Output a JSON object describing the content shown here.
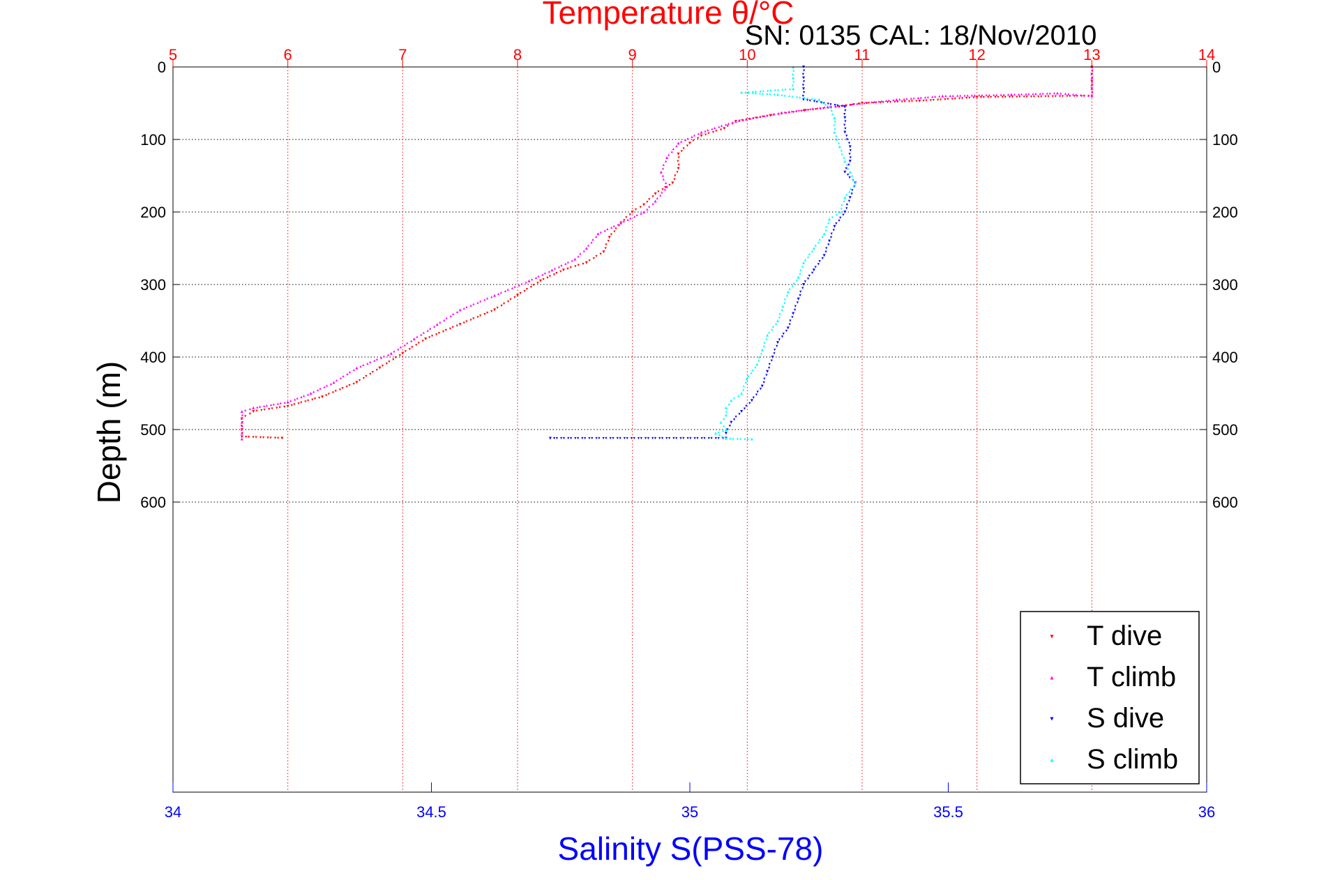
{
  "chart_data": {
    "type": "scatter",
    "title": "Temperature θ/°C",
    "subtitle": "SN: 0135  CAL: 18/Nov/2010",
    "xlabel_top": "Temperature θ/°C",
    "xlabel_bottom": "Salinity S(PSS-78)",
    "ylabel": "Depth (m)",
    "temperature_axis": {
      "range": [
        5,
        14
      ],
      "ticks": [
        "5",
        "6",
        "7",
        "8",
        "9",
        "10",
        "11",
        "12",
        "13",
        "14"
      ]
    },
    "salinity_axis": {
      "range": [
        34,
        36
      ],
      "ticks": [
        "34",
        "34.5",
        "35",
        "35.5",
        "36"
      ]
    },
    "depth_axis": {
      "range": [
        0,
        1000
      ],
      "reversed": true,
      "ticks": [
        "0",
        "100",
        "200",
        "300",
        "400",
        "500",
        "600"
      ]
    },
    "grid": true,
    "legend_placement": "bottom-right",
    "series": [
      {
        "name": "T dive",
        "axis": "temperature",
        "color": "#ff0000",
        "marker": "triangle-down",
        "points": [
          [
            13.0,
            0
          ],
          [
            13.0,
            10
          ],
          [
            13.0,
            20
          ],
          [
            13.0,
            30
          ],
          [
            13.0,
            40
          ],
          [
            12.0,
            42
          ],
          [
            11.5,
            47
          ],
          [
            11.0,
            50
          ],
          [
            10.8,
            55
          ],
          [
            10.5,
            60
          ],
          [
            10.2,
            67
          ],
          [
            9.9,
            75
          ],
          [
            9.8,
            85
          ],
          [
            9.6,
            95
          ],
          [
            9.5,
            105
          ],
          [
            9.4,
            120
          ],
          [
            9.4,
            140
          ],
          [
            9.35,
            160
          ],
          [
            9.2,
            175
          ],
          [
            9.1,
            190
          ],
          [
            9.0,
            200
          ],
          [
            8.9,
            215
          ],
          [
            8.8,
            235
          ],
          [
            8.75,
            255
          ],
          [
            8.6,
            270
          ],
          [
            8.4,
            280
          ],
          [
            8.2,
            295
          ],
          [
            8.0,
            315
          ],
          [
            7.8,
            335
          ],
          [
            7.5,
            355
          ],
          [
            7.2,
            375
          ],
          [
            7.0,
            395
          ],
          [
            6.8,
            415
          ],
          [
            6.6,
            435
          ],
          [
            6.3,
            455
          ],
          [
            6.0,
            468
          ],
          [
            5.7,
            475
          ],
          [
            5.6,
            485
          ],
          [
            5.6,
            500
          ],
          [
            5.6,
            510
          ],
          [
            5.95,
            512
          ]
        ]
      },
      {
        "name": "T climb",
        "axis": "temperature",
        "color": "#ff00ff",
        "marker": "triangle-up",
        "points": [
          [
            13.0,
            0
          ],
          [
            13.0,
            15
          ],
          [
            13.0,
            30
          ],
          [
            13.0,
            40
          ],
          [
            12.7,
            36
          ],
          [
            12.3,
            38
          ],
          [
            11.7,
            40
          ],
          [
            11.3,
            45
          ],
          [
            10.7,
            55
          ],
          [
            10.3,
            63
          ],
          [
            9.9,
            75
          ],
          [
            9.6,
            90
          ],
          [
            9.4,
            105
          ],
          [
            9.3,
            125
          ],
          [
            9.25,
            145
          ],
          [
            9.3,
            165
          ],
          [
            9.2,
            185
          ],
          [
            9.1,
            200
          ],
          [
            8.9,
            215
          ],
          [
            8.7,
            230
          ],
          [
            8.6,
            250
          ],
          [
            8.5,
            265
          ],
          [
            8.3,
            280
          ],
          [
            8.1,
            295
          ],
          [
            7.8,
            315
          ],
          [
            7.5,
            335
          ],
          [
            7.3,
            355
          ],
          [
            7.1,
            375
          ],
          [
            6.9,
            395
          ],
          [
            6.6,
            415
          ],
          [
            6.4,
            435
          ],
          [
            6.2,
            450
          ],
          [
            6.0,
            462
          ],
          [
            5.7,
            470
          ],
          [
            5.6,
            475
          ],
          [
            5.6,
            490
          ],
          [
            5.6,
            505
          ],
          [
            5.6,
            513
          ]
        ]
      },
      {
        "name": "S dive",
        "axis": "salinity",
        "color": "#0000ff",
        "marker": "triangle-down",
        "points": [
          [
            35.22,
            0
          ],
          [
            35.22,
            15
          ],
          [
            35.22,
            30
          ],
          [
            35.22,
            45
          ],
          [
            35.3,
            55
          ],
          [
            35.3,
            70
          ],
          [
            35.3,
            90
          ],
          [
            35.31,
            110
          ],
          [
            35.31,
            130
          ],
          [
            35.3,
            145
          ],
          [
            35.32,
            160
          ],
          [
            35.31,
            180
          ],
          [
            35.3,
            200
          ],
          [
            35.28,
            220
          ],
          [
            35.27,
            240
          ],
          [
            35.26,
            260
          ],
          [
            35.24,
            280
          ],
          [
            35.22,
            300
          ],
          [
            35.21,
            320
          ],
          [
            35.2,
            340
          ],
          [
            35.19,
            360
          ],
          [
            35.17,
            380
          ],
          [
            35.16,
            400
          ],
          [
            35.15,
            420
          ],
          [
            35.14,
            440
          ],
          [
            35.12,
            460
          ],
          [
            35.1,
            475
          ],
          [
            35.08,
            490
          ],
          [
            35.07,
            505
          ],
          [
            35.07,
            512
          ],
          [
            34.73,
            512
          ]
        ]
      },
      {
        "name": "S climb",
        "axis": "salinity",
        "color": "#00ffff",
        "marker": "triangle-up",
        "points": [
          [
            35.2,
            0
          ],
          [
            35.2,
            15
          ],
          [
            35.2,
            30
          ],
          [
            35.1,
            35
          ],
          [
            35.17,
            38
          ],
          [
            35.25,
            45
          ],
          [
            35.27,
            55
          ],
          [
            35.28,
            70
          ],
          [
            35.28,
            90
          ],
          [
            35.29,
            110
          ],
          [
            35.3,
            130
          ],
          [
            35.31,
            145
          ],
          [
            35.32,
            160
          ],
          [
            35.3,
            180
          ],
          [
            35.29,
            200
          ],
          [
            35.27,
            210
          ],
          [
            35.26,
            230
          ],
          [
            35.24,
            250
          ],
          [
            35.22,
            270
          ],
          [
            35.21,
            290
          ],
          [
            35.19,
            310
          ],
          [
            35.18,
            330
          ],
          [
            35.17,
            350
          ],
          [
            35.15,
            370
          ],
          [
            35.14,
            390
          ],
          [
            35.13,
            410
          ],
          [
            35.11,
            430
          ],
          [
            35.1,
            450
          ],
          [
            35.08,
            460
          ],
          [
            35.07,
            470
          ],
          [
            35.07,
            480
          ],
          [
            35.06,
            490
          ],
          [
            35.07,
            500
          ],
          [
            35.05,
            505
          ],
          [
            35.07,
            512
          ],
          [
            35.12,
            513
          ]
        ]
      }
    ]
  }
}
